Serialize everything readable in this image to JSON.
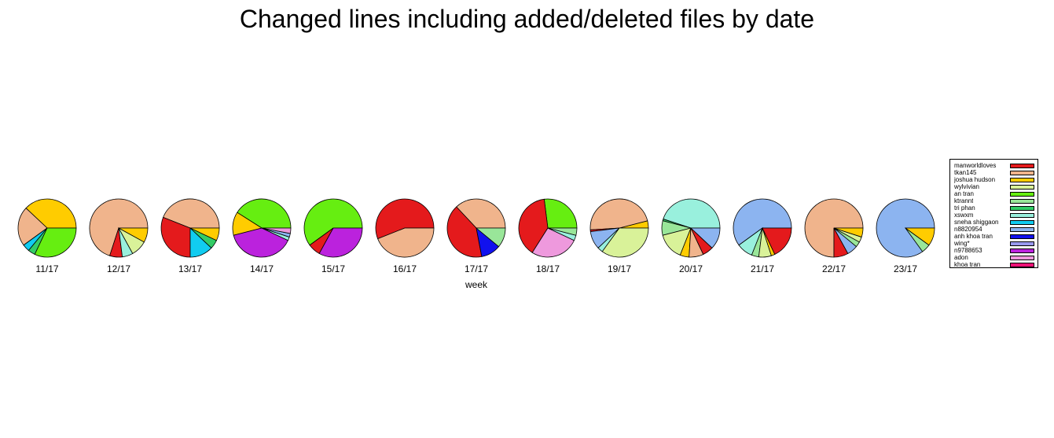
{
  "chart_data": {
    "type": "pie",
    "title": "Changed lines including added/deleted files by date",
    "xlabel": "week",
    "legend": {
      "placement": "right",
      "entries": [
        {
          "name": "manworldloves",
          "color": "#E41A1C"
        },
        {
          "name": "tkan145",
          "color": "#F0B48C"
        },
        {
          "name": "joshua hudson",
          "color": "#FFCC00"
        },
        {
          "name": "wylvivian",
          "color": "#D9F299"
        },
        {
          "name": "an tran",
          "color": "#66EE11"
        },
        {
          "name": "ktrannt",
          "color": "#99E699"
        },
        {
          "name": "tri phan",
          "color": "#33CC66"
        },
        {
          "name": "xswxm",
          "color": "#99F0DD"
        },
        {
          "name": "sneha shiggaon",
          "color": "#11CCF0"
        },
        {
          "name": "n8820954",
          "color": "#8CB4F0"
        },
        {
          "name": "anh khoa tran",
          "color": "#1111EE"
        },
        {
          "name": "wing*",
          "color": "#9999EE"
        },
        {
          "name": "n9788653",
          "color": "#BB22DD"
        },
        {
          "name": "adon",
          "color": "#EE99DD"
        },
        {
          "name": "khoa tran",
          "color": "#EE1177"
        }
      ]
    },
    "pies": [
      {
        "week": "11/17",
        "slices": [
          {
            "author": "joshua hudson",
            "value": 38
          },
          {
            "author": "tkan145",
            "value": 22
          },
          {
            "author": "sneha shiggaon",
            "value": 4
          },
          {
            "author": "tri phan",
            "value": 4
          },
          {
            "author": "an tran",
            "value": 32
          }
        ]
      },
      {
        "week": "12/17",
        "slices": [
          {
            "author": "tkan145",
            "value": 70
          },
          {
            "author": "manworldloves",
            "value": 7
          },
          {
            "author": "xswxm",
            "value": 6
          },
          {
            "author": "wylvivian",
            "value": 9
          },
          {
            "author": "joshua hudson",
            "value": 8
          }
        ]
      },
      {
        "week": "13/17",
        "slices": [
          {
            "author": "tkan145",
            "value": 44
          },
          {
            "author": "manworldloves",
            "value": 31
          },
          {
            "author": "sneha shiggaon",
            "value": 13
          },
          {
            "author": "tri phan",
            "value": 5
          },
          {
            "author": "joshua hudson",
            "value": 7
          }
        ]
      },
      {
        "week": "14/17",
        "slices": [
          {
            "author": "an tran",
            "value": 41
          },
          {
            "author": "joshua hudson",
            "value": 13
          },
          {
            "author": "n9788653",
            "value": 39
          },
          {
            "author": "xswxm",
            "value": 2
          },
          {
            "author": "n8820954",
            "value": 2
          },
          {
            "author": "adon",
            "value": 3
          }
        ]
      },
      {
        "week": "15/17",
        "slices": [
          {
            "author": "an tran",
            "value": 60
          },
          {
            "author": "manworldloves",
            "value": 7
          },
          {
            "author": "n9788653",
            "value": 33
          }
        ]
      },
      {
        "week": "16/17",
        "slices": [
          {
            "author": "manworldloves",
            "value": 56
          },
          {
            "author": "tkan145",
            "value": 44
          }
        ]
      },
      {
        "week": "17/17",
        "slices": [
          {
            "author": "tkan145",
            "value": 37
          },
          {
            "author": "manworldloves",
            "value": 41
          },
          {
            "author": "anh khoa tran",
            "value": 11
          },
          {
            "author": "ktrannt",
            "value": 11
          }
        ]
      },
      {
        "week": "18/17",
        "slices": [
          {
            "author": "an tran",
            "value": 27
          },
          {
            "author": "manworldloves",
            "value": 39
          },
          {
            "author": "adon",
            "value": 27
          },
          {
            "author": "xswxm",
            "value": 3
          },
          {
            "author": "ktrannt",
            "value": 4
          }
        ]
      },
      {
        "week": "19/17",
        "slices": [
          {
            "author": "joshua hudson",
            "value": 4
          },
          {
            "author": "tkan145",
            "value": 47
          },
          {
            "author": "manworldloves",
            "value": 1
          },
          {
            "author": "n8820954",
            "value": 10
          },
          {
            "author": "xswxm",
            "value": 3
          },
          {
            "author": "wylvivian",
            "value": 35
          }
        ]
      },
      {
        "week": "20/17",
        "slices": [
          {
            "author": "xswxm",
            "value": 45
          },
          {
            "author": "tri phan",
            "value": 1
          },
          {
            "author": "ktrannt",
            "value": 8
          },
          {
            "author": "wylvivian",
            "value": 15
          },
          {
            "author": "joshua hudson",
            "value": 5
          },
          {
            "author": "tkan145",
            "value": 8
          },
          {
            "author": "manworldloves",
            "value": 6
          },
          {
            "author": "n8820954",
            "value": 12
          }
        ]
      },
      {
        "week": "21/17",
        "slices": [
          {
            "author": "n8820954",
            "value": 60
          },
          {
            "author": "xswxm",
            "value": 9
          },
          {
            "author": "ktrannt",
            "value": 4
          },
          {
            "author": "wylvivian",
            "value": 7
          },
          {
            "author": "joshua hudson",
            "value": 2
          },
          {
            "author": "manworldloves",
            "value": 18
          }
        ]
      },
      {
        "week": "22/17",
        "slices": [
          {
            "author": "tkan145",
            "value": 75
          },
          {
            "author": "manworldloves",
            "value": 8
          },
          {
            "author": "n8820954",
            "value": 6
          },
          {
            "author": "ktrannt",
            "value": 3
          },
          {
            "author": "wylvivian",
            "value": 3
          },
          {
            "author": "joshua hudson",
            "value": 5
          }
        ]
      },
      {
        "week": "23/17",
        "slices": [
          {
            "author": "n8820954",
            "value": 85
          },
          {
            "author": "ktrannt",
            "value": 5
          },
          {
            "author": "joshua hudson",
            "value": 10
          }
        ]
      }
    ]
  }
}
